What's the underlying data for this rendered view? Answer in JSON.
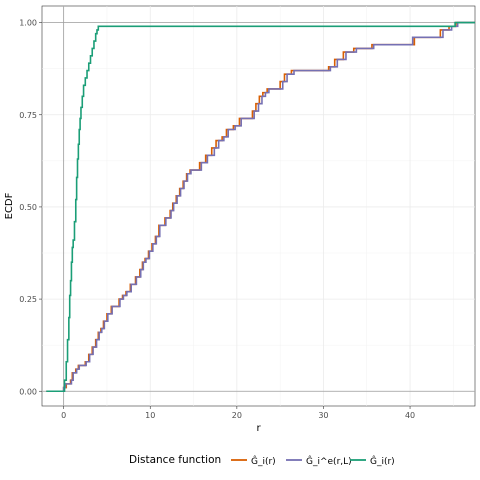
{
  "chart_data": {
    "type": "line",
    "title": "",
    "xlabel": "r",
    "ylabel": "ECDF",
    "xlim": [
      -2.5,
      47.5
    ],
    "ylim": [
      -0.04,
      1.045
    ],
    "x_ticks": [
      0,
      10,
      20,
      30,
      40
    ],
    "y_ticks": [
      0.0,
      0.25,
      0.5,
      0.75,
      1.0
    ],
    "x_tick_labels": [
      "0",
      "10",
      "20",
      "30",
      "40"
    ],
    "y_tick_labels": [
      "0.00",
      "0.25",
      "0.50",
      "0.75",
      "1.00"
    ],
    "grid": true,
    "legend": {
      "title": "Distance function",
      "position": "bottom",
      "entries": [
        {
          "label": "Ĝ_i(r)",
          "color": "#D95F02"
        },
        {
          "label": "Ĝ_i^e(r,L)",
          "color": "#7570B3"
        },
        {
          "label": "Ĝ_i(r)",
          "color": "#1B9E77"
        }
      ]
    },
    "series": [
      {
        "name": "Ĝ_i(r)",
        "color": "#D95F02",
        "step": true,
        "points": [
          [
            -2,
            0
          ],
          [
            0,
            0
          ],
          [
            0,
            0.01
          ],
          [
            0.3,
            0.02
          ],
          [
            0.8,
            0.03
          ],
          [
            1,
            0.05
          ],
          [
            1.4,
            0.06
          ],
          [
            1.7,
            0.07
          ],
          [
            2.5,
            0.08
          ],
          [
            2.9,
            0.1
          ],
          [
            3.3,
            0.12
          ],
          [
            3.7,
            0.14
          ],
          [
            4,
            0.16
          ],
          [
            4.3,
            0.17
          ],
          [
            4.6,
            0.19
          ],
          [
            5,
            0.21
          ],
          [
            5.5,
            0.23
          ],
          [
            6.4,
            0.25
          ],
          [
            6.8,
            0.26
          ],
          [
            7.2,
            0.27
          ],
          [
            7.7,
            0.29
          ],
          [
            8.3,
            0.31
          ],
          [
            8.8,
            0.33
          ],
          [
            9.1,
            0.35
          ],
          [
            9.4,
            0.36
          ],
          [
            9.8,
            0.38
          ],
          [
            10.2,
            0.4
          ],
          [
            10.6,
            0.42
          ],
          [
            11,
            0.45
          ],
          [
            11.7,
            0.47
          ],
          [
            12.3,
            0.49
          ],
          [
            12.6,
            0.51
          ],
          [
            13,
            0.53
          ],
          [
            13.4,
            0.55
          ],
          [
            13.8,
            0.57
          ],
          [
            14.2,
            0.59
          ],
          [
            14.6,
            0.6
          ],
          [
            15.7,
            0.62
          ],
          [
            16.4,
            0.64
          ],
          [
            17.1,
            0.66
          ],
          [
            17.6,
            0.68
          ],
          [
            18.3,
            0.69
          ],
          [
            18.8,
            0.71
          ],
          [
            19.6,
            0.72
          ],
          [
            20.3,
            0.74
          ],
          [
            21.8,
            0.76
          ],
          [
            22.2,
            0.78
          ],
          [
            22.6,
            0.8
          ],
          [
            23,
            0.81
          ],
          [
            23.5,
            0.82
          ],
          [
            25,
            0.84
          ],
          [
            25.5,
            0.86
          ],
          [
            26.3,
            0.87
          ],
          [
            30.6,
            0.88
          ],
          [
            31.3,
            0.9
          ],
          [
            32.3,
            0.92
          ],
          [
            33.5,
            0.93
          ],
          [
            35.6,
            0.94
          ],
          [
            40.5,
            0.96
          ],
          [
            43.5,
            0.98
          ],
          [
            44.5,
            0.99
          ],
          [
            45.3,
            1.0
          ],
          [
            47.5,
            1.0
          ]
        ]
      },
      {
        "name": "Ĝ_i^e(r,L)",
        "color": "#7570B3",
        "step": true,
        "points": [
          [
            -2,
            0
          ],
          [
            0,
            0
          ],
          [
            0,
            0.01
          ],
          [
            0.2,
            0.02
          ],
          [
            0.9,
            0.03
          ],
          [
            1.1,
            0.05
          ],
          [
            1.5,
            0.06
          ],
          [
            1.8,
            0.07
          ],
          [
            2.6,
            0.08
          ],
          [
            3,
            0.1
          ],
          [
            3.4,
            0.12
          ],
          [
            3.8,
            0.14
          ],
          [
            4.1,
            0.16
          ],
          [
            4.4,
            0.17
          ],
          [
            4.7,
            0.19
          ],
          [
            5.1,
            0.21
          ],
          [
            5.6,
            0.23
          ],
          [
            6.5,
            0.25
          ],
          [
            6.9,
            0.26
          ],
          [
            7.3,
            0.27
          ],
          [
            7.8,
            0.29
          ],
          [
            8.4,
            0.31
          ],
          [
            8.9,
            0.33
          ],
          [
            9.2,
            0.35
          ],
          [
            9.5,
            0.36
          ],
          [
            9.9,
            0.38
          ],
          [
            10.3,
            0.4
          ],
          [
            10.7,
            0.42
          ],
          [
            11.1,
            0.45
          ],
          [
            11.8,
            0.47
          ],
          [
            12.4,
            0.49
          ],
          [
            12.7,
            0.51
          ],
          [
            13.1,
            0.53
          ],
          [
            13.5,
            0.55
          ],
          [
            13.9,
            0.57
          ],
          [
            14.3,
            0.59
          ],
          [
            14.7,
            0.6
          ],
          [
            15.9,
            0.62
          ],
          [
            16.6,
            0.64
          ],
          [
            17.4,
            0.66
          ],
          [
            17.9,
            0.68
          ],
          [
            18.5,
            0.69
          ],
          [
            19,
            0.71
          ],
          [
            19.8,
            0.72
          ],
          [
            20.5,
            0.74
          ],
          [
            22,
            0.76
          ],
          [
            22.5,
            0.78
          ],
          [
            22.9,
            0.8
          ],
          [
            23.3,
            0.81
          ],
          [
            23.7,
            0.82
          ],
          [
            25.3,
            0.84
          ],
          [
            25.8,
            0.86
          ],
          [
            26.6,
            0.87
          ],
          [
            30.8,
            0.88
          ],
          [
            31.6,
            0.9
          ],
          [
            32.6,
            0.92
          ],
          [
            33.8,
            0.93
          ],
          [
            35.8,
            0.94
          ],
          [
            40.3,
            0.96
          ],
          [
            43.8,
            0.98
          ],
          [
            44.8,
            0.99
          ],
          [
            45.5,
            1.0
          ],
          [
            47.5,
            1.0
          ]
        ]
      },
      {
        "name": "Ĝ_i(r)",
        "color": "#1B9E77",
        "step": true,
        "points": [
          [
            -2,
            0
          ],
          [
            0,
            0
          ],
          [
            0.1,
            0.03
          ],
          [
            0.3,
            0.08
          ],
          [
            0.45,
            0.14
          ],
          [
            0.6,
            0.2
          ],
          [
            0.7,
            0.26
          ],
          [
            0.8,
            0.3
          ],
          [
            0.9,
            0.35
          ],
          [
            1,
            0.39
          ],
          [
            1.1,
            0.41
          ],
          [
            1.25,
            0.46
          ],
          [
            1.4,
            0.52
          ],
          [
            1.5,
            0.58
          ],
          [
            1.6,
            0.63
          ],
          [
            1.7,
            0.67
          ],
          [
            1.8,
            0.71
          ],
          [
            1.9,
            0.74
          ],
          [
            2,
            0.77
          ],
          [
            2.15,
            0.8
          ],
          [
            2.3,
            0.83
          ],
          [
            2.5,
            0.85
          ],
          [
            2.7,
            0.87
          ],
          [
            2.9,
            0.89
          ],
          [
            3.1,
            0.91
          ],
          [
            3.3,
            0.93
          ],
          [
            3.5,
            0.95
          ],
          [
            3.7,
            0.97
          ],
          [
            3.85,
            0.98
          ],
          [
            4,
            0.99
          ],
          [
            44.5,
            0.99
          ],
          [
            45.2,
            1.0
          ],
          [
            47.5,
            1.0
          ]
        ]
      }
    ]
  }
}
